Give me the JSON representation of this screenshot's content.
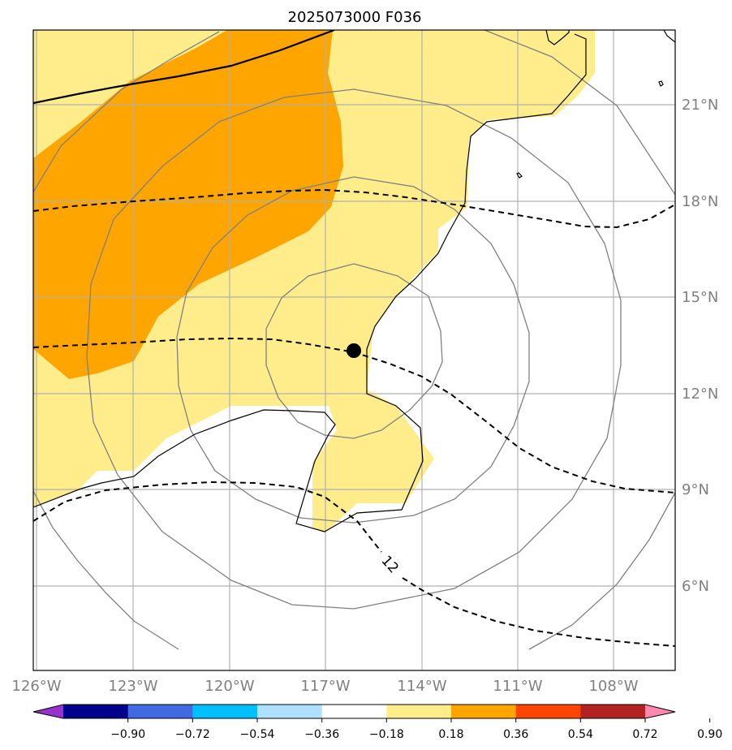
{
  "title": "2025073000 F036",
  "map": {
    "lon_ticks": [
      "126°W",
      "123°W",
      "120°W",
      "117°W",
      "114°W",
      "111°W",
      "108°W"
    ],
    "lat_ticks": [
      "21°N",
      "18°N",
      "15°N",
      "12°N",
      "9°N",
      "6°N"
    ],
    "storm_center": {
      "lon": "116.2°W",
      "lat": "13.3°N"
    },
    "contour_label": "12"
  },
  "colorbar": {
    "ticks": [
      "−0.90",
      "−0.72",
      "−0.54",
      "−0.36",
      "−0.18",
      "0.18",
      "0.36",
      "0.54",
      "0.72",
      "0.90"
    ],
    "colors": [
      "#9932cc",
      "#00008b",
      "#4169e1",
      "#00bfff",
      "#b0e0ff",
      "#ffffff",
      "#ffec8b",
      "#ffa500",
      "#ff4500",
      "#b22222",
      "#ff88b0"
    ]
  },
  "colors": {
    "light_fill": "#ffec8b",
    "dark_fill": "#ffa500",
    "circle": "#808080",
    "grid": "#b0b0b0"
  }
}
